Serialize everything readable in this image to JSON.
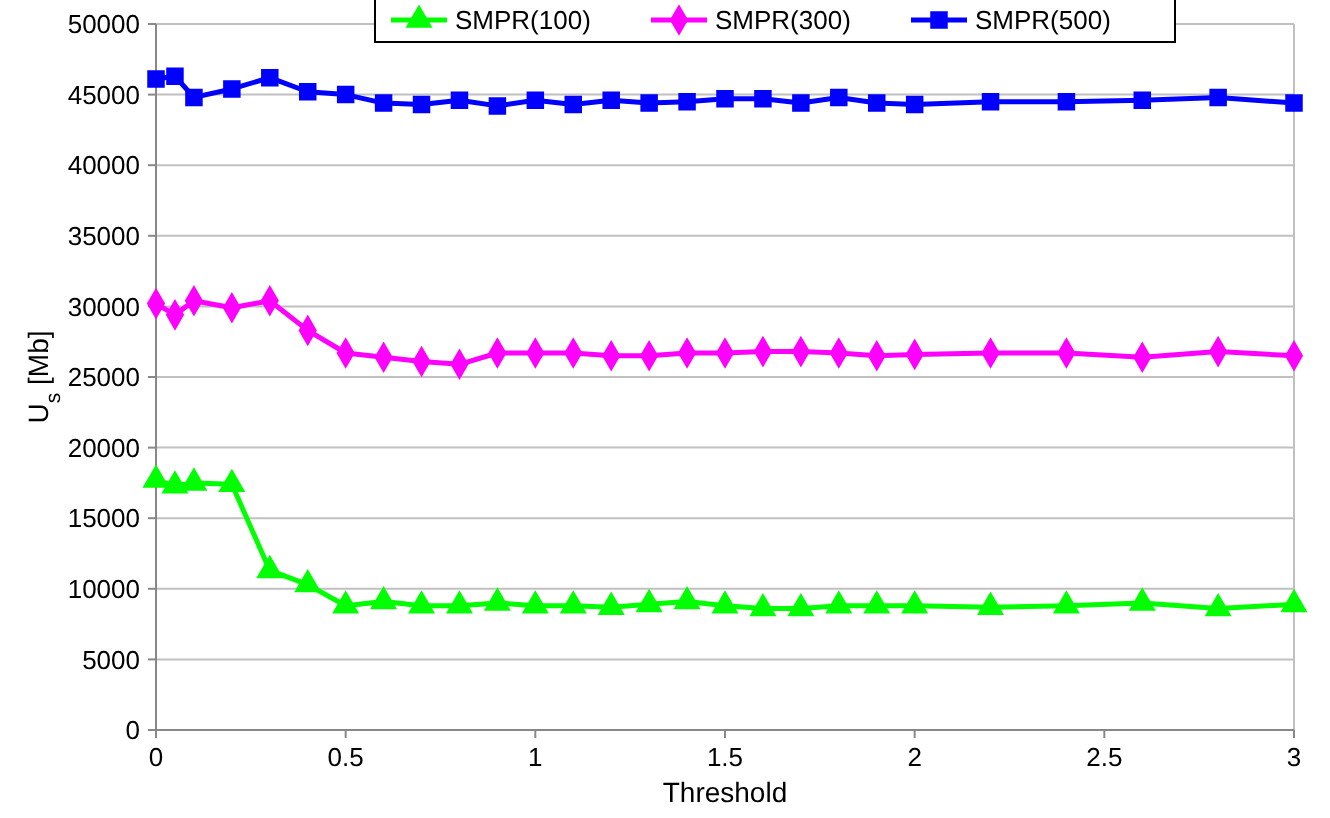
{
  "chart_data": {
    "type": "line",
    "xlabel": "Threshold",
    "ylabel": "U$_{s}$ [Mb]",
    "x": [
      0,
      0.05,
      0.1,
      0.2,
      0.3,
      0.4,
      0.5,
      0.6,
      0.7,
      0.8,
      0.9,
      1.0,
      1.1,
      1.2,
      1.3,
      1.4,
      1.5,
      1.6,
      1.7,
      1.8,
      1.9,
      2.0,
      2.2,
      2.4,
      2.6,
      2.8,
      3.0
    ],
    "series": [
      {
        "name": "SMPR(100)",
        "color": "#00ff00",
        "marker": "triangle",
        "values": [
          17700,
          17300,
          17500,
          17400,
          11300,
          10300,
          8800,
          9100,
          8800,
          8800,
          9000,
          8800,
          8800,
          8700,
          8900,
          9100,
          8800,
          8600,
          8600,
          8800,
          8800,
          8800,
          8700,
          8800,
          9000,
          8600,
          8900
        ]
      },
      {
        "name": "SMPR(300)",
        "color": "#ff00ff",
        "marker": "diamond",
        "values": [
          30200,
          29400,
          30400,
          29900,
          30400,
          28300,
          26700,
          26400,
          26100,
          25900,
          26700,
          26700,
          26700,
          26500,
          26500,
          26700,
          26700,
          26800,
          26800,
          26700,
          26500,
          26600,
          26700,
          26700,
          26400,
          26800,
          26500
        ]
      },
      {
        "name": "SMPR(500)",
        "color": "#0000ff",
        "marker": "square",
        "values": [
          46100,
          46300,
          44800,
          45400,
          46200,
          45200,
          45000,
          44400,
          44300,
          44600,
          44200,
          44600,
          44300,
          44600,
          44400,
          44500,
          44700,
          44700,
          44400,
          44800,
          44400,
          44300,
          44500,
          44500,
          44600,
          44800,
          44400
        ]
      }
    ],
    "xlim": [
      0,
      3
    ],
    "xticks": [
      0,
      0.5,
      1,
      1.5,
      2,
      2.5,
      3
    ],
    "ylim": [
      0,
      50000
    ],
    "yticks": [
      0,
      5000,
      10000,
      15000,
      20000,
      25000,
      30000,
      35000,
      40000,
      45000,
      50000
    ],
    "grid": "y",
    "legend": "top",
    "line_style": "solid"
  }
}
